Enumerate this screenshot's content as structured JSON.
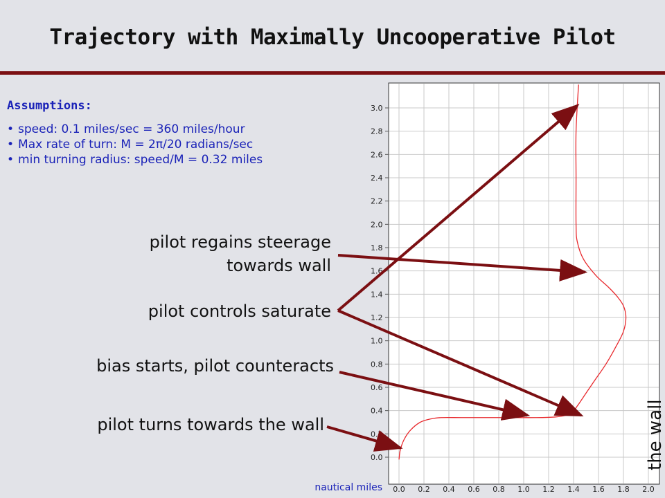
{
  "title": "Trajectory with Maximally Uncooperative Pilot",
  "assumptions": {
    "heading": "Assumptions:",
    "items": [
      "speed: 0.1 miles/sec = 360 miles/hour",
      "Max rate of turn: M = 2π/20 radians/sec",
      "min turning radius: speed/M = 0.32 miles"
    ]
  },
  "annotations": {
    "regains_line1": "pilot regains steerage",
    "regains_line2": "towards wall",
    "saturate": "pilot controls saturate",
    "bias": "bias starts, pilot counteracts",
    "turns": "pilot turns towards the wall"
  },
  "colors": {
    "accent": "#7b0f12",
    "text_blue": "#1b23b8",
    "curve": "#e8292d",
    "arrow": "#7b0f12"
  },
  "chart_data": {
    "type": "line",
    "title": "",
    "xlabel": "nautical miles",
    "ylabel": "",
    "xlim": [
      0.0,
      2.0
    ],
    "ylim": [
      0.0,
      3.0
    ],
    "grid": true,
    "x_ticks": [
      "0.0",
      "0.2",
      "0.4",
      "0.6",
      "0.8",
      "1.0",
      "1.2",
      "1.4",
      "1.6",
      "1.8",
      "2.0"
    ],
    "y_ticks": [
      "0.0",
      "0.2",
      "0.4",
      "0.6",
      "0.8",
      "1.0",
      "1.2",
      "1.4",
      "1.6",
      "1.8",
      "2.0",
      "2.2",
      "2.4",
      "2.6",
      "2.8",
      "3.0"
    ],
    "wall_label": "the wall",
    "series": [
      {
        "x": [
          0.0,
          0.01,
          0.04,
          0.09,
          0.17,
          0.26,
          0.34,
          0.5,
          0.7,
          0.9,
          1.1,
          1.25,
          1.34,
          1.38,
          1.41,
          1.43,
          1.45,
          1.5,
          1.57,
          1.66,
          1.74,
          1.8,
          1.82,
          1.8,
          1.75,
          1.68,
          1.58,
          1.48,
          1.43,
          1.42,
          1.42,
          1.42,
          1.44
        ],
        "y": [
          -0.02,
          0.06,
          0.15,
          0.23,
          0.3,
          0.33,
          0.34,
          0.34,
          0.34,
          0.34,
          0.34,
          0.345,
          0.36,
          0.38,
          0.41,
          0.44,
          0.47,
          0.55,
          0.66,
          0.8,
          0.95,
          1.08,
          1.2,
          1.3,
          1.38,
          1.46,
          1.56,
          1.7,
          1.85,
          2.0,
          2.4,
          2.8,
          3.2
        ]
      }
    ],
    "arrow_targets": {
      "regains": [
        1.49,
        1.59
      ],
      "saturate_up": [
        1.43,
        3.02
      ],
      "saturate_down": [
        1.46,
        0.36
      ],
      "bias": [
        1.03,
        0.36
      ],
      "turns": [
        0.01,
        0.08
      ]
    }
  }
}
